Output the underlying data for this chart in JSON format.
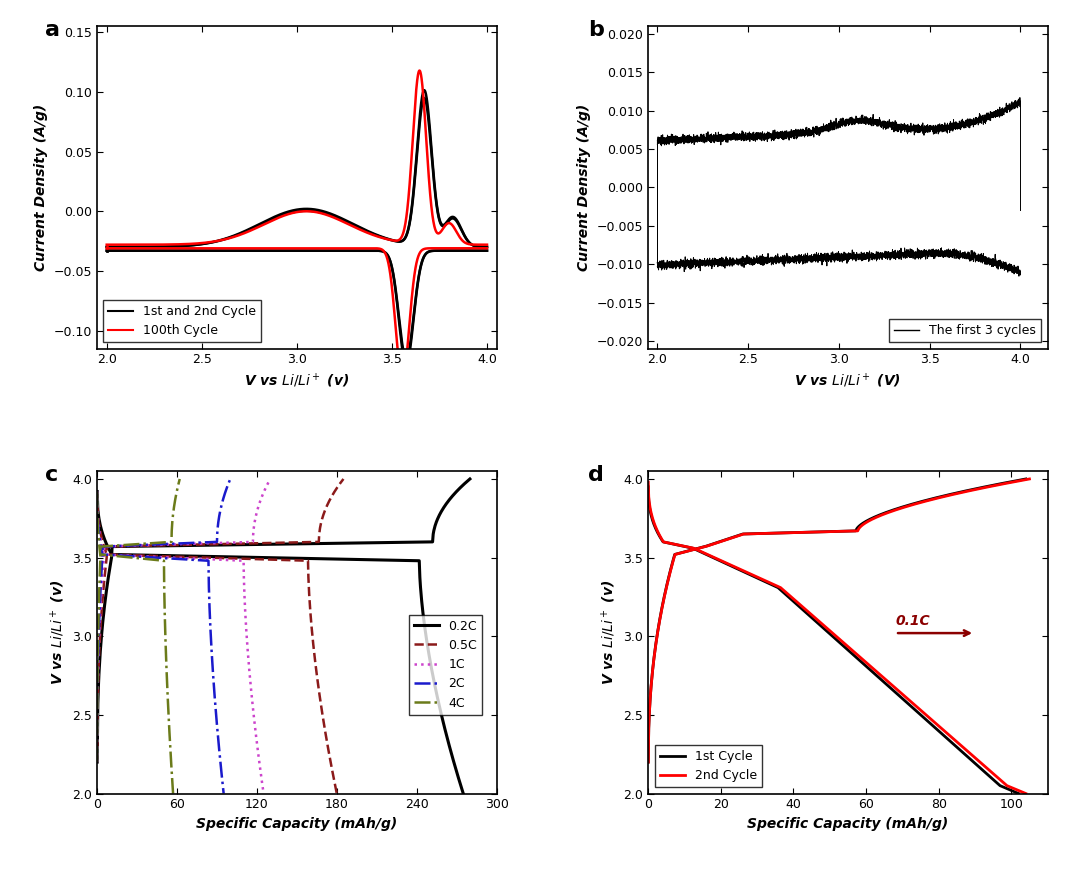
{
  "fig_size": [
    10.8,
    8.72
  ],
  "panel_label_fontsize": 16,
  "tick_fontsize": 9,
  "label_fontsize": 10,
  "legend_fontsize": 9,
  "panel_a": {
    "xlim": [
      1.95,
      4.05
    ],
    "ylim": [
      -0.115,
      0.155
    ],
    "xticks": [
      2.0,
      2.5,
      3.0,
      3.5,
      4.0
    ],
    "yticks": [
      -0.1,
      -0.05,
      0.0,
      0.05,
      0.1,
      0.15
    ],
    "xlabel": "V vs $\\mathit{Li/Li}$$^+$ (v)",
    "ylabel": "Current Density (A/g)",
    "legend": [
      "1st and 2nd Cycle",
      "100th Cycle"
    ],
    "legend_loc": "lower left"
  },
  "panel_b": {
    "xlim": [
      1.95,
      4.15
    ],
    "ylim": [
      -0.021,
      0.021
    ],
    "xticks": [
      2.0,
      2.5,
      3.0,
      3.5,
      4.0
    ],
    "yticks": [
      -0.02,
      -0.015,
      -0.01,
      -0.005,
      0.0,
      0.005,
      0.01,
      0.015,
      0.02
    ],
    "xlabel": "V vs $\\mathit{Li/Li}$$^+$ (V)",
    "ylabel": "Current Density (A/g)",
    "legend": [
      "The first 3 cycles"
    ],
    "legend_loc": "lower right"
  },
  "panel_c": {
    "xlim": [
      0,
      300
    ],
    "ylim": [
      2.0,
      4.05
    ],
    "xticks": [
      0,
      60,
      120,
      180,
      240,
      300
    ],
    "yticks": [
      2.0,
      2.5,
      3.0,
      3.5,
      4.0
    ],
    "xlabel": "Specific Capacity (mAh/g)",
    "ylabel": "V vs $\\mathit{Li/Li}$$^+$ (v)",
    "legend": [
      "0.2C",
      "0.5C",
      "1C",
      "2C",
      "4C"
    ],
    "legend_loc": "center right"
  },
  "panel_d": {
    "xlim": [
      0,
      110
    ],
    "ylim": [
      2.0,
      4.05
    ],
    "xticks": [
      0,
      20,
      40,
      60,
      80,
      100
    ],
    "yticks": [
      2.0,
      2.5,
      3.0,
      3.5,
      4.0
    ],
    "xlabel": "Specific Capacity (mAh/g)",
    "ylabel": "V vs $\\mathit{Li/Li}$$^+$ (v)",
    "legend": [
      "1st Cycle",
      "2nd Cycle"
    ],
    "legend_loc": "lower left",
    "annotation": "0.1C"
  }
}
